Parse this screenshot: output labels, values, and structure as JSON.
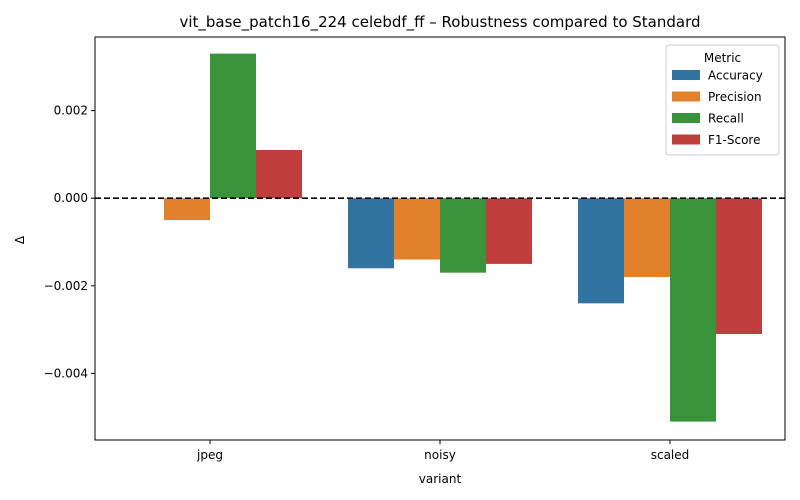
{
  "chart_data": {
    "type": "bar",
    "title": "vit_base_patch16_224 celebdf_ff – Robustness compared to Standard",
    "xlabel": "variant",
    "ylabel": "Δ",
    "categories": [
      "jpeg",
      "noisy",
      "scaled"
    ],
    "series": [
      {
        "name": "Accuracy",
        "color": "#3274a1",
        "values": [
          0.0,
          -0.0016,
          -0.0024
        ]
      },
      {
        "name": "Precision",
        "color": "#e1812c",
        "values": [
          -0.0005,
          -0.0014,
          -0.0018
        ]
      },
      {
        "name": "Recall",
        "color": "#3a923a",
        "values": [
          0.0033,
          -0.0017,
          -0.0051
        ]
      },
      {
        "name": "F1-Score",
        "color": "#c03d3e",
        "values": [
          0.0011,
          -0.0015,
          -0.0031
        ]
      }
    ],
    "ylim": [
      -0.00552,
      0.00368
    ],
    "yticks": [
      -0.004,
      -0.002,
      0.0,
      0.002
    ],
    "ytick_labels": [
      "−0.004",
      "−0.002",
      "0.000",
      "0.002"
    ],
    "reference_line": {
      "value": 0.0,
      "style": "dashed",
      "color": "#000000"
    },
    "legend": {
      "title": "Metric",
      "position": "top-right"
    },
    "grid": false
  }
}
